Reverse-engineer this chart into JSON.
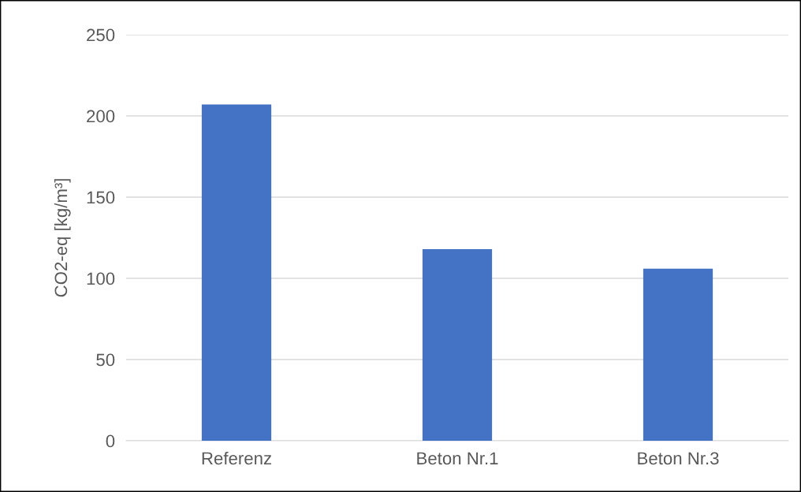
{
  "chart_data": {
    "type": "bar",
    "ylabel": "CO2-eq [kg/m³]",
    "categories": [
      "Referenz",
      "Beton Nr.1",
      "Beton Nr.3"
    ],
    "values": [
      207,
      118,
      106
    ],
    "color": "#4472c4",
    "ylim": [
      0,
      250
    ],
    "yticks": [
      0,
      50,
      100,
      150,
      200,
      250
    ],
    "grid": "y"
  }
}
